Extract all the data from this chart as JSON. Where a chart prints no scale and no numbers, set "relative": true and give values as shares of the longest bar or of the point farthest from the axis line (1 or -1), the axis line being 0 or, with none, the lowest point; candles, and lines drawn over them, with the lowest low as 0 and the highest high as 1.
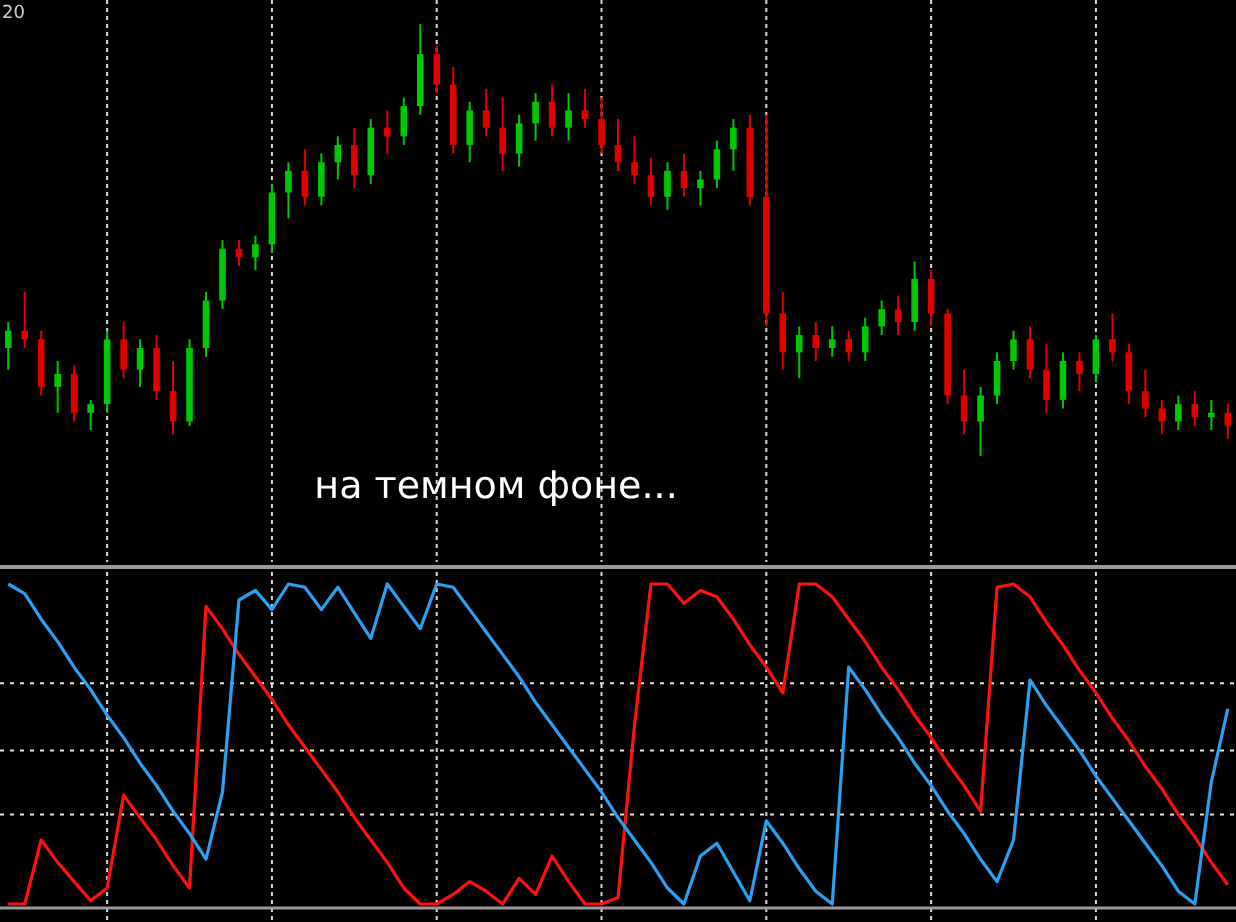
{
  "chart_data": [
    {
      "type": "candlestick",
      "relative": true,
      "grid": "x",
      "categories": [
        null,
        null,
        null,
        null,
        null,
        null,
        null,
        null,
        null,
        null,
        null,
        null,
        null,
        null,
        null,
        null,
        null,
        null,
        null,
        null,
        null,
        null,
        null,
        null,
        null,
        null,
        null,
        null,
        null,
        null,
        null,
        null,
        null,
        null,
        null,
        null,
        null,
        null,
        null,
        null,
        null,
        null,
        null,
        null,
        null,
        null,
        null,
        null,
        null,
        null,
        null,
        null,
        null,
        null,
        null,
        null,
        null,
        null,
        null,
        null,
        null,
        null,
        null,
        null,
        null,
        null,
        null,
        null,
        null,
        null,
        null,
        null,
        null,
        null,
        null
      ],
      "annotations": [
        "20",
        "на темном фоне..."
      ],
      "ohlc": [
        [
          0.25,
          0.31,
          0.2,
          0.29
        ],
        [
          0.29,
          0.38,
          0.25,
          0.27
        ],
        [
          0.27,
          0.29,
          0.14,
          0.16
        ],
        [
          0.16,
          0.22,
          0.1,
          0.19
        ],
        [
          0.19,
          0.21,
          0.08,
          0.1
        ],
        [
          0.1,
          0.13,
          0.06,
          0.12
        ],
        [
          0.12,
          0.29,
          0.1,
          0.27
        ],
        [
          0.27,
          0.31,
          0.18,
          0.2
        ],
        [
          0.2,
          0.27,
          0.16,
          0.25
        ],
        [
          0.25,
          0.28,
          0.13,
          0.15
        ],
        [
          0.15,
          0.22,
          0.05,
          0.08
        ],
        [
          0.08,
          0.27,
          0.07,
          0.25
        ],
        [
          0.25,
          0.38,
          0.23,
          0.36
        ],
        [
          0.36,
          0.5,
          0.34,
          0.48
        ],
        [
          0.48,
          0.5,
          0.44,
          0.46
        ],
        [
          0.46,
          0.51,
          0.43,
          0.49
        ],
        [
          0.49,
          0.63,
          0.47,
          0.61
        ],
        [
          0.61,
          0.68,
          0.55,
          0.66
        ],
        [
          0.66,
          0.71,
          0.58,
          0.6
        ],
        [
          0.6,
          0.7,
          0.58,
          0.68
        ],
        [
          0.68,
          0.74,
          0.64,
          0.72
        ],
        [
          0.72,
          0.76,
          0.62,
          0.65
        ],
        [
          0.65,
          0.78,
          0.63,
          0.76
        ],
        [
          0.76,
          0.8,
          0.7,
          0.74
        ],
        [
          0.74,
          0.83,
          0.72,
          0.81
        ],
        [
          0.81,
          1.0,
          0.79,
          0.93
        ],
        [
          0.93,
          0.95,
          0.84,
          0.86
        ],
        [
          0.86,
          0.9,
          0.7,
          0.72
        ],
        [
          0.72,
          0.82,
          0.68,
          0.8
        ],
        [
          0.8,
          0.85,
          0.74,
          0.76
        ],
        [
          0.76,
          0.83,
          0.66,
          0.7
        ],
        [
          0.7,
          0.79,
          0.67,
          0.77
        ],
        [
          0.77,
          0.84,
          0.73,
          0.82
        ],
        [
          0.82,
          0.86,
          0.74,
          0.76
        ],
        [
          0.76,
          0.84,
          0.73,
          0.8
        ],
        [
          0.8,
          0.85,
          0.76,
          0.78
        ],
        [
          0.78,
          0.83,
          0.7,
          0.72
        ],
        [
          0.72,
          0.78,
          0.66,
          0.68
        ],
        [
          0.68,
          0.74,
          0.63,
          0.65
        ],
        [
          0.65,
          0.69,
          0.58,
          0.6
        ],
        [
          0.6,
          0.68,
          0.57,
          0.66
        ],
        [
          0.66,
          0.7,
          0.6,
          0.62
        ],
        [
          0.62,
          0.66,
          0.58,
          0.64
        ],
        [
          0.64,
          0.73,
          0.62,
          0.71
        ],
        [
          0.71,
          0.78,
          0.66,
          0.76
        ],
        [
          0.76,
          0.79,
          0.58,
          0.6
        ],
        [
          0.6,
          0.79,
          0.3,
          0.33
        ],
        [
          0.33,
          0.38,
          0.2,
          0.24
        ],
        [
          0.24,
          0.3,
          0.18,
          0.28
        ],
        [
          0.28,
          0.31,
          0.22,
          0.25
        ],
        [
          0.25,
          0.3,
          0.23,
          0.27
        ],
        [
          0.27,
          0.29,
          0.22,
          0.24
        ],
        [
          0.24,
          0.32,
          0.22,
          0.3
        ],
        [
          0.3,
          0.36,
          0.28,
          0.34
        ],
        [
          0.34,
          0.37,
          0.28,
          0.31
        ],
        [
          0.31,
          0.45,
          0.29,
          0.41
        ],
        [
          0.41,
          0.43,
          0.3,
          0.33
        ],
        [
          0.33,
          0.34,
          0.12,
          0.14
        ],
        [
          0.14,
          0.2,
          0.05,
          0.08
        ],
        [
          0.08,
          0.16,
          0.0,
          0.14
        ],
        [
          0.14,
          0.24,
          0.12,
          0.22
        ],
        [
          0.22,
          0.29,
          0.2,
          0.27
        ],
        [
          0.27,
          0.3,
          0.18,
          0.2
        ],
        [
          0.2,
          0.26,
          0.1,
          0.13
        ],
        [
          0.13,
          0.24,
          0.11,
          0.22
        ],
        [
          0.22,
          0.24,
          0.15,
          0.19
        ],
        [
          0.19,
          0.28,
          0.17,
          0.27
        ],
        [
          0.27,
          0.33,
          0.22,
          0.24
        ],
        [
          0.24,
          0.26,
          0.12,
          0.15
        ],
        [
          0.15,
          0.2,
          0.09,
          0.11
        ],
        [
          0.11,
          0.13,
          0.05,
          0.08
        ],
        [
          0.08,
          0.14,
          0.06,
          0.12
        ],
        [
          0.12,
          0.15,
          0.07,
          0.09
        ],
        [
          0.09,
          0.13,
          0.06,
          0.1
        ],
        [
          0.1,
          0.12,
          0.04,
          0.07
        ]
      ],
      "colors": [
        "#00c800",
        "#e00000",
        "#e00000",
        "#00c800",
        "#e00000",
        "#00c800",
        "#00c800",
        "#e00000",
        "#00c800",
        "#e00000",
        "#e00000",
        "#00c800",
        "#00c800",
        "#00c800",
        "#e00000",
        "#00c800",
        "#00c800",
        "#00c800",
        "#e00000",
        "#00c800",
        "#00c800",
        "#e00000",
        "#00c800",
        "#e00000",
        "#00c800",
        "#00c800",
        "#e00000",
        "#e00000",
        "#00c800",
        "#e00000",
        "#e00000",
        "#00c800",
        "#00c800",
        "#e00000",
        "#00c800",
        "#e00000",
        "#e00000",
        "#e00000",
        "#e00000",
        "#e00000",
        "#00c800",
        "#e00000",
        "#00c800",
        "#00c800",
        "#00c800",
        "#e00000",
        "#e00000",
        "#e00000",
        "#00c800",
        "#e00000",
        "#00c800",
        "#e00000",
        "#00c800",
        "#00c800",
        "#e00000",
        "#00c800",
        "#e00000",
        "#e00000",
        "#e00000",
        "#00c800",
        "#00c800",
        "#00c800",
        "#e00000",
        "#e00000",
        "#00c800",
        "#e00000",
        "#00c800",
        "#e00000",
        "#e00000",
        "#e00000",
        "#e00000",
        "#00c800",
        "#e00000",
        "#00c800",
        "#e00000"
      ]
    },
    {
      "type": "line",
      "relative": true,
      "grid": "x",
      "line_style": "solid",
      "marker": "none",
      "ref_lines": [
        {
          "axis": "y",
          "value": 0.69,
          "color": "#e8e4c8",
          "line_style": "dotted"
        },
        {
          "axis": "y",
          "value": 0.48,
          "color": "#e8e4c8",
          "line_style": "dotted"
        },
        {
          "axis": "y",
          "value": 0.28,
          "color": "#e8e4c8",
          "line_style": "dotted"
        }
      ],
      "categories": [
        null,
        null,
        null,
        null,
        null,
        null,
        null,
        null,
        null,
        null,
        null,
        null,
        null,
        null,
        null,
        null,
        null,
        null,
        null,
        null,
        null,
        null,
        null,
        null,
        null,
        null,
        null,
        null,
        null,
        null,
        null,
        null,
        null,
        null,
        null,
        null,
        null,
        null,
        null,
        null,
        null,
        null,
        null,
        null,
        null,
        null,
        null,
        null,
        null,
        null,
        null,
        null,
        null,
        null,
        null,
        null,
        null,
        null,
        null,
        null,
        null,
        null,
        null,
        null,
        null,
        null,
        null,
        null,
        null,
        null,
        null,
        null,
        null,
        null,
        null
      ],
      "series": [
        {
          "color": "#ff1010",
          "values": [
            0,
            0,
            0.2,
            0.13,
            0.07,
            0.01,
            0.05,
            0.34,
            0.27,
            0.2,
            0.12,
            0.05,
            0.93,
            0.86,
            0.78,
            0.71,
            0.64,
            0.56,
            0.49,
            0.42,
            0.35,
            0.27,
            0.2,
            0.13,
            0.05,
            0,
            0,
            0.03,
            0.07,
            0.04,
            0,
            0.08,
            0.03,
            0.15,
            0.07,
            0,
            0,
            0.02,
            0.56,
            1.0,
            1.0,
            0.94,
            0.98,
            0.96,
            0.89,
            0.81,
            0.74,
            0.66,
            1.0,
            1.0,
            0.96,
            0.89,
            0.82,
            0.74,
            0.67,
            0.59,
            0.52,
            0.44,
            0.37,
            0.29,
            0.99,
            1.0,
            0.96,
            0.88,
            0.81,
            0.73,
            0.66,
            0.58,
            0.51,
            0.43,
            0.36,
            0.28,
            0.21,
            0.13,
            0.06
          ]
        },
        {
          "color": "#2aa0f0",
          "values": [
            1.0,
            0.97,
            0.89,
            0.82,
            0.74,
            0.67,
            0.59,
            0.52,
            0.44,
            0.37,
            0.29,
            0.22,
            0.14,
            0.35,
            0.95,
            0.98,
            0.92,
            1.0,
            0.99,
            0.92,
            0.99,
            0.91,
            0.83,
            1.0,
            0.93,
            0.86,
            1.0,
            0.99,
            0.92,
            0.85,
            0.78,
            0.71,
            0.63,
            0.56,
            0.49,
            0.42,
            0.35,
            0.27,
            0.2,
            0.13,
            0.05,
            0,
            0.15,
            0.19,
            0.1,
            0.01,
            0.26,
            0.19,
            0.11,
            0.04,
            0,
            0.74,
            0.67,
            0.59,
            0.52,
            0.44,
            0.37,
            0.29,
            0.22,
            0.14,
            0.07,
            0.2,
            0.7,
            0.62,
            0.55,
            0.48,
            0.4,
            0.33,
            0.26,
            0.19,
            0.12,
            0.04,
            0,
            0.38,
            0.61
          ]
        }
      ]
    }
  ]
}
